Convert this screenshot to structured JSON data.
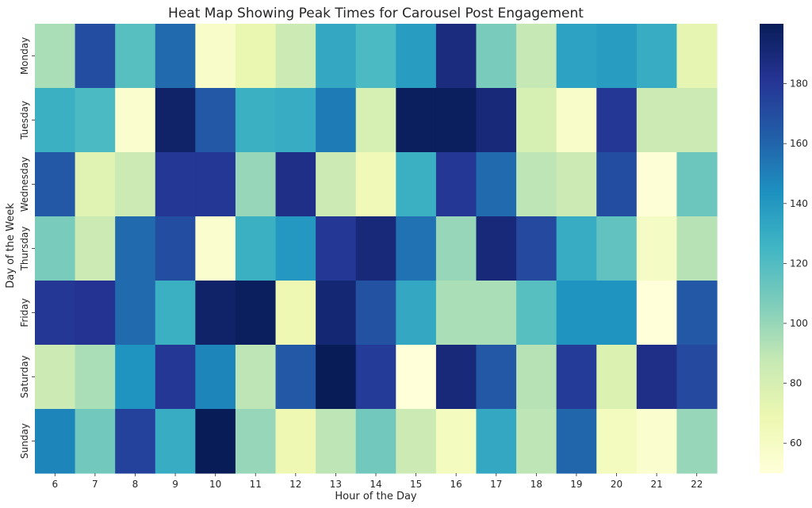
{
  "chart_data": {
    "type": "heatmap",
    "title": "Heat Map Showing Peak Times for Carousel Post Engagement",
    "xlabel": "Hour of the Day",
    "ylabel": "Day of the Week",
    "x": [
      "6",
      "7",
      "8",
      "9",
      "10",
      "11",
      "12",
      "13",
      "14",
      "15",
      "16",
      "17",
      "18",
      "19",
      "20",
      "21",
      "22"
    ],
    "y": [
      "Monday",
      "Tuesday",
      "Wednesday",
      "Thursday",
      "Friday",
      "Saturday",
      "Sunday"
    ],
    "values": [
      [
        95,
        170,
        118,
        158,
        58,
        70,
        85,
        132,
        122,
        138,
        188,
        108,
        88,
        135,
        138,
        130,
        72
      ],
      [
        128,
        122,
        55,
        195,
        165,
        128,
        130,
        152,
        80,
        198,
        198,
        190,
        80,
        58,
        180,
        85,
        85
      ],
      [
        165,
        75,
        85,
        180,
        180,
        100,
        185,
        85,
        65,
        128,
        180,
        158,
        90,
        85,
        170,
        52,
        112
      ],
      [
        108,
        85,
        158,
        170,
        55,
        128,
        140,
        180,
        190,
        155,
        100,
        190,
        172,
        130,
        115,
        60,
        92
      ],
      [
        180,
        182,
        158,
        128,
        195,
        198,
        68,
        192,
        168,
        132,
        95,
        95,
        118,
        142,
        142,
        50,
        165
      ],
      [
        85,
        95,
        142,
        180,
        148,
        90,
        165,
        200,
        178,
        50,
        190,
        165,
        92,
        178,
        78,
        185,
        172
      ],
      [
        148,
        110,
        175,
        130,
        200,
        100,
        68,
        90,
        110,
        85,
        62,
        132,
        90,
        160,
        62,
        55,
        100
      ]
    ],
    "colorbar": {
      "ticks": [
        60,
        80,
        100,
        120,
        140,
        160,
        180
      ],
      "range": [
        50,
        200
      ],
      "colormap": "YlGnBu"
    }
  }
}
